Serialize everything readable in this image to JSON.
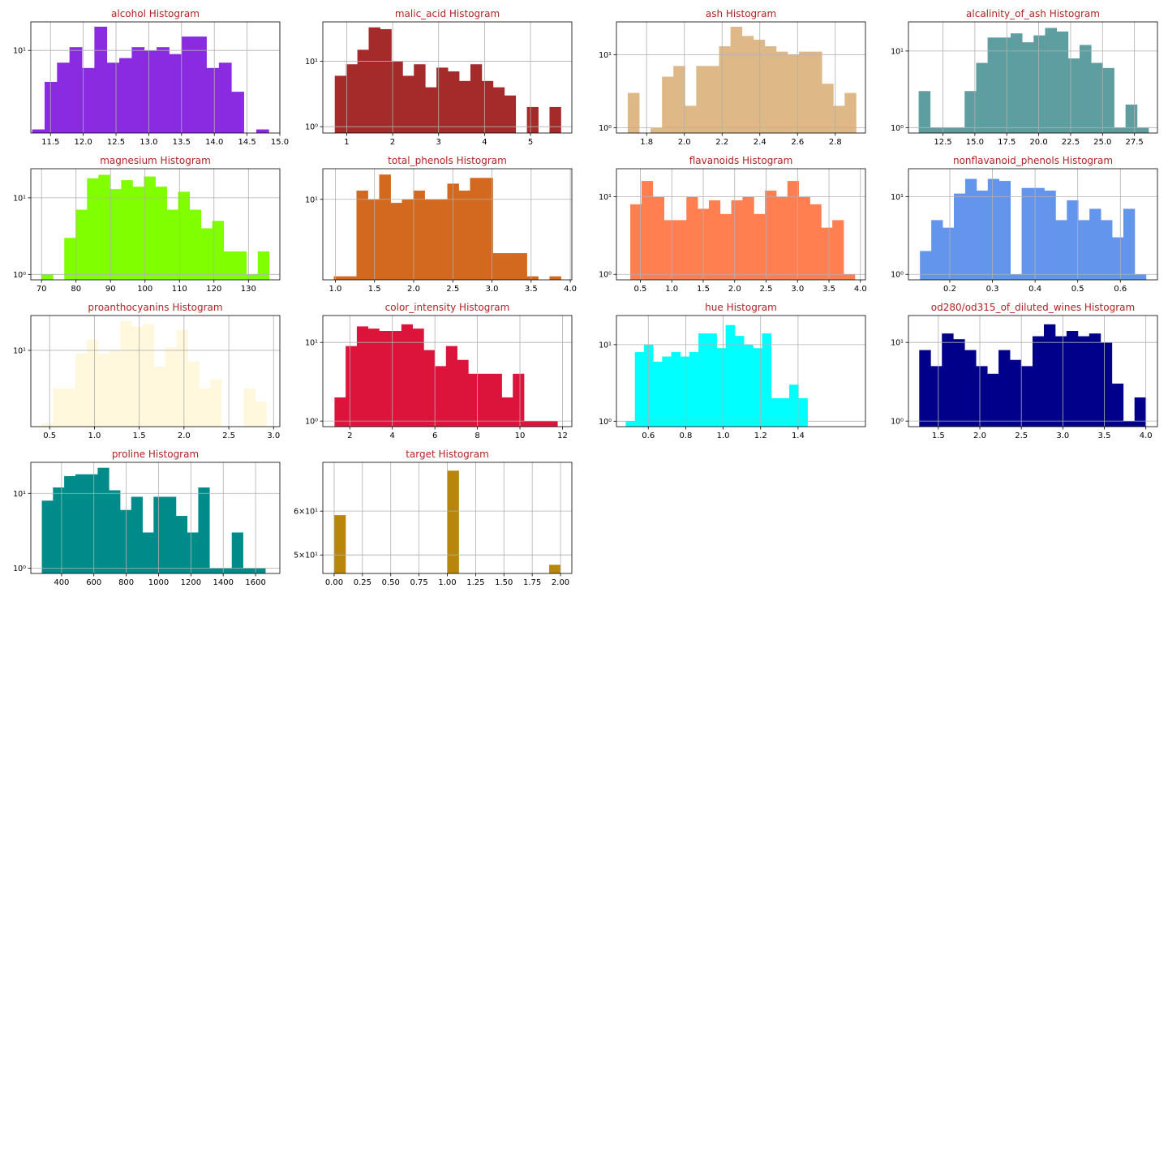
{
  "figure": {
    "title_color": "#b22222",
    "grid_color": "#b0b0b0",
    "axis_color": "#000000"
  },
  "chart_data": [
    {
      "type": "bar",
      "title": "alcohol Histogram",
      "color": "#8a2be2",
      "yscale": "log",
      "xlim": [
        11.2,
        15.0
      ],
      "x_ticks": [
        11.5,
        12.0,
        12.5,
        13.0,
        13.5,
        14.0,
        14.5,
        15.0
      ],
      "x_tick_labels": [
        "11.5",
        "12.0",
        "12.5",
        "13.0",
        "13.5",
        "14.0",
        "14.5",
        "15.0"
      ],
      "ylim": [
        0.9,
        23
      ],
      "y_ticks": [
        10
      ],
      "y_tick_labels": [
        "10¹"
      ],
      "bin_edges": [
        11.03,
        11.22,
        11.41,
        11.6,
        11.79,
        11.98,
        12.17,
        12.36,
        12.55,
        12.74,
        12.93,
        13.12,
        13.31,
        13.5,
        13.69,
        13.88,
        14.07,
        14.26,
        14.45,
        14.64,
        14.83
      ],
      "counts": [
        0,
        1,
        4,
        7,
        11,
        6,
        20,
        7,
        8,
        11,
        10,
        11,
        9,
        15,
        15,
        6,
        7,
        3,
        0,
        1
      ]
    },
    {
      "type": "bar",
      "title": "malic_acid Histogram",
      "color": "#a52a2a",
      "yscale": "log",
      "xlim": [
        0.48,
        5.9
      ],
      "x_ticks": [
        1,
        2,
        3,
        4,
        5
      ],
      "x_tick_labels": [
        "1",
        "2",
        "3",
        "4",
        "5"
      ],
      "ylim": [
        0.8,
        40
      ],
      "y_ticks": [
        1,
        10
      ],
      "y_tick_labels": [
        "10⁰",
        "10¹"
      ],
      "bin_edges": [
        0.74,
        0.986,
        1.232,
        1.478,
        1.724,
        1.97,
        2.216,
        2.462,
        2.708,
        2.954,
        3.2,
        3.446,
        3.692,
        3.938,
        4.184,
        4.43,
        4.676,
        4.922,
        5.168,
        5.414,
        5.66
      ],
      "counts": [
        6,
        9,
        15,
        33,
        31,
        10,
        6,
        9,
        4,
        8,
        7,
        5,
        9,
        5,
        4,
        3,
        0,
        2,
        0,
        2
      ]
    },
    {
      "type": "bar",
      "title": "ash Histogram",
      "color": "#deb887",
      "yscale": "log",
      "xlim": [
        1.64,
        2.96
      ],
      "x_ticks": [
        1.8,
        2.0,
        2.2,
        2.4,
        2.6,
        2.8
      ],
      "x_tick_labels": [
        "1.8",
        "2.0",
        "2.2",
        "2.4",
        "2.6",
        "2.8"
      ],
      "ylim": [
        0.85,
        28
      ],
      "y_ticks": [
        1,
        10
      ],
      "y_tick_labels": [
        "10⁰",
        "10¹"
      ],
      "bin_edges": [
        1.7,
        1.7605,
        1.821,
        1.8815,
        1.942,
        2.0025,
        2.063,
        2.1235,
        2.184,
        2.2445,
        2.305,
        2.3655,
        2.426,
        2.4865,
        2.547,
        2.6075,
        2.668,
        2.7285,
        2.789,
        2.8495,
        2.91
      ],
      "counts": [
        3,
        0,
        1,
        5,
        7,
        2,
        7,
        7,
        13,
        24,
        18,
        16,
        13,
        11,
        10,
        11,
        11,
        4,
        2,
        3
      ]
    },
    {
      "type": "bar",
      "title": "alcalinity_of_ash Histogram",
      "color": "#5f9ea0",
      "yscale": "log",
      "xlim": [
        9.8,
        29.3
      ],
      "x_ticks": [
        12.5,
        15.0,
        17.5,
        20.0,
        22.5,
        25.0,
        27.5
      ],
      "x_tick_labels": [
        "12.5",
        "15.0",
        "17.5",
        "20.0",
        "22.5",
        "25.0",
        "27.5"
      ],
      "ylim": [
        0.85,
        24
      ],
      "y_ticks": [
        1,
        10
      ],
      "y_tick_labels": [
        "10⁰",
        "10¹"
      ],
      "bin_edges": [
        10.6,
        11.5,
        12.4,
        13.3,
        14.2,
        15.1,
        16.0,
        16.9,
        17.8,
        18.7,
        19.6,
        20.5,
        21.4,
        22.3,
        23.2,
        24.1,
        25.0,
        25.9,
        26.8,
        27.7,
        28.6
      ],
      "counts": [
        3,
        1,
        1,
        1,
        3,
        7,
        15,
        15,
        17,
        13,
        16,
        20,
        18,
        8,
        12,
        7,
        6,
        1,
        2,
        1
      ]
    },
    {
      "type": "bar",
      "title": "magnesium Histogram",
      "color": "#7fff00",
      "yscale": "log",
      "xlim": [
        66.9,
        139.1
      ],
      "x_ticks": [
        70,
        80,
        90,
        100,
        110,
        120,
        130
      ],
      "x_tick_labels": [
        "70",
        "80",
        "90",
        "100",
        "110",
        "120",
        "130"
      ],
      "ylim": [
        0.85,
        24
      ],
      "y_ticks": [
        1,
        10
      ],
      "y_tick_labels": [
        "10⁰",
        "10¹"
      ],
      "bin_edges": [
        70,
        73.3,
        76.6,
        79.9,
        83.2,
        86.5,
        89.8,
        93.1,
        96.4,
        99.7,
        103,
        106.3,
        109.6,
        112.9,
        116.2,
        119.5,
        122.8,
        126.1,
        129.4,
        132.7,
        136
      ],
      "counts": [
        1,
        0,
        3,
        7,
        18,
        20,
        13,
        17,
        14,
        19,
        14,
        7,
        12,
        7,
        4,
        5,
        2,
        2,
        1,
        2
      ]
    },
    {
      "type": "bar",
      "title": "total_phenols Histogram",
      "color": "#d2691e",
      "yscale": "log",
      "xlim": [
        0.84,
        4.02
      ],
      "x_ticks": [
        1.0,
        1.5,
        2.0,
        2.5,
        3.0,
        3.5,
        4.0
      ],
      "x_tick_labels": [
        "1.0",
        "1.5",
        "2.0",
        "2.5",
        "3.0",
        "3.5",
        "4.0"
      ],
      "ylim": [
        0.9,
        25
      ],
      "y_ticks": [
        10
      ],
      "y_tick_labels": [
        "10¹"
      ],
      "bin_edges": [
        0.98,
        1.125,
        1.27,
        1.415,
        1.56,
        1.705,
        1.85,
        1.995,
        2.14,
        2.285,
        2.43,
        2.575,
        2.72,
        2.865,
        3.01,
        3.155,
        3.3,
        3.445,
        3.59,
        3.735,
        3.88
      ],
      "counts": [
        1,
        1,
        13,
        10,
        21,
        9,
        10,
        13,
        10,
        10,
        16,
        13,
        19,
        19,
        2,
        2,
        2,
        1,
        0,
        1
      ]
    },
    {
      "type": "bar",
      "title": "flavanoids Histogram",
      "color": "#ff7f50",
      "yscale": "log",
      "xlim": [
        0.12,
        4.08
      ],
      "x_ticks": [
        0.5,
        1.0,
        1.5,
        2.0,
        2.5,
        3.0,
        3.5,
        4.0
      ],
      "x_tick_labels": [
        "0.5",
        "1.0",
        "1.5",
        "2.0",
        "2.5",
        "3.0",
        "3.5",
        "4.0"
      ],
      "ylim": [
        0.85,
        23
      ],
      "y_ticks": [
        1,
        10
      ],
      "y_tick_labels": [
        "10⁰",
        "10¹"
      ],
      "bin_edges": [
        0.34,
        0.5185,
        0.697,
        0.8755,
        1.054,
        1.2325,
        1.411,
        1.5895,
        1.768,
        1.9465,
        2.125,
        2.3035,
        2.482,
        2.6605,
        2.839,
        3.0175,
        3.196,
        3.3745,
        3.553,
        3.7315,
        3.91
      ],
      "counts": [
        8,
        16,
        10,
        5,
        5,
        10,
        7,
        9,
        6,
        9,
        10,
        6,
        12,
        10,
        16,
        10,
        8,
        4,
        5,
        1
      ]
    },
    {
      "type": "bar",
      "title": "nonflavanoid_phenols Histogram",
      "color": "#6495ed",
      "yscale": "log",
      "xlim": [
        0.103,
        0.687
      ],
      "x_ticks": [
        0.2,
        0.3,
        0.4,
        0.5,
        0.6
      ],
      "x_tick_labels": [
        "0.2",
        "0.3",
        "0.4",
        "0.5",
        "0.6"
      ],
      "ylim": [
        0.85,
        23
      ],
      "y_ticks": [
        1,
        10
      ],
      "y_tick_labels": [
        "10⁰",
        "10¹"
      ],
      "bin_edges": [
        0.13,
        0.1565,
        0.183,
        0.2095,
        0.236,
        0.2625,
        0.289,
        0.3155,
        0.342,
        0.3685,
        0.395,
        0.4215,
        0.448,
        0.4745,
        0.501,
        0.5275,
        0.554,
        0.5805,
        0.607,
        0.6335,
        0.66
      ],
      "counts": [
        2,
        5,
        4,
        11,
        17,
        12,
        17,
        16,
        1,
        13,
        13,
        12,
        5,
        9,
        5,
        7,
        5,
        3,
        7,
        1
      ]
    },
    {
      "type": "bar",
      "title": "proanthocyanins Histogram",
      "color": "#fff8dc",
      "yscale": "log",
      "xlim": [
        0.29,
        3.07
      ],
      "x_ticks": [
        0.5,
        1.0,
        1.5,
        2.0,
        2.5,
        3.0
      ],
      "x_tick_labels": [
        "0.5",
        "1.0",
        "1.5",
        "2.0",
        "2.5",
        "3.0"
      ],
      "ylim": [
        0.9,
        30
      ],
      "y_ticks": [
        10
      ],
      "y_tick_labels": [
        "10¹"
      ],
      "bin_edges": [
        0.41,
        0.5355,
        0.661,
        0.7865,
        0.912,
        1.0375,
        1.163,
        1.2885,
        1.414,
        1.5395,
        1.665,
        1.7905,
        1.916,
        2.0415,
        2.167,
        2.2925,
        2.418,
        2.5435,
        2.669,
        2.7945,
        2.92
      ],
      "counts": [
        1,
        3,
        3,
        9,
        14,
        9,
        10,
        25,
        21,
        23,
        6,
        11,
        19,
        7,
        3,
        4,
        0,
        0,
        3,
        2
      ]
    },
    {
      "type": "bar",
      "title": "color_intensity Histogram",
      "color": "#dc143c",
      "yscale": "log",
      "xlim": [
        0.73,
        12.44
      ],
      "x_ticks": [
        2,
        4,
        6,
        8,
        10,
        12
      ],
      "x_tick_labels": [
        "2",
        "4",
        "6",
        "8",
        "10",
        "12"
      ],
      "ylim": [
        0.85,
        22
      ],
      "y_ticks": [
        1,
        10
      ],
      "y_tick_labels": [
        "10⁰",
        "10¹"
      ],
      "bin_edges": [
        1.28,
        1.804,
        2.328,
        2.852,
        3.376,
        3.9,
        4.424,
        4.948,
        5.472,
        5.996,
        6.52,
        7.044,
        7.568,
        8.092,
        8.616,
        9.14,
        9.664,
        10.188,
        10.712,
        11.236,
        11.76
      ],
      "counts": [
        2,
        9,
        16,
        15,
        14,
        14,
        17,
        15,
        8,
        5,
        9,
        6,
        4,
        4,
        4,
        2,
        4,
        1,
        1,
        1
      ]
    },
    {
      "type": "bar",
      "title": "hue Histogram",
      "color": "#00ffff",
      "yscale": "log",
      "xlim": [
        0.43,
        1.76
      ],
      "x_ticks": [
        0.6,
        0.8,
        1.0,
        1.2,
        1.4
      ],
      "x_tick_labels": [
        "0.6",
        "0.8",
        "1.0",
        "1.2",
        "1.4"
      ],
      "ylim": [
        0.85,
        24
      ],
      "y_ticks": [
        1,
        10
      ],
      "y_tick_labels": [
        "10⁰",
        "10¹"
      ],
      "bin_edges": [
        0.48,
        0.5285,
        0.577,
        0.6255,
        0.674,
        0.7225,
        0.771,
        0.8195,
        0.868,
        0.9165,
        0.965,
        1.0135,
        1.062,
        1.1105,
        1.159,
        1.2075,
        1.256,
        1.3045,
        1.353,
        1.4015,
        1.45
      ],
      "counts": [
        1,
        8,
        10,
        6,
        7,
        8,
        7,
        8,
        14,
        14,
        9,
        18,
        13,
        10,
        9,
        14,
        2,
        2,
        3,
        2
      ]
    },
    {
      "type": "bar",
      "title": "od280/od315_of_diluted_wines Histogram",
      "color": "#00008b",
      "yscale": "log",
      "xlim": [
        1.14,
        4.14
      ],
      "x_ticks": [
        1.5,
        2.0,
        2.5,
        3.0,
        3.5,
        4.0
      ],
      "x_tick_labels": [
        "1.5",
        "2.0",
        "2.5",
        "3.0",
        "3.5",
        "4.0"
      ],
      "ylim": [
        0.85,
        22
      ],
      "y_ticks": [
        1,
        10
      ],
      "y_tick_labels": [
        "10⁰",
        "10¹"
      ],
      "bin_edges": [
        1.27,
        1.4065,
        1.543,
        1.6795,
        1.816,
        1.9525,
        2.089,
        2.2255,
        2.362,
        2.4985,
        2.635,
        2.7715,
        2.908,
        3.0445,
        3.181,
        3.3175,
        3.454,
        3.5905,
        3.727,
        3.8635,
        4.0
      ],
      "counts": [
        8,
        5,
        13,
        11,
        8,
        5,
        4,
        8,
        6,
        5,
        12,
        17,
        12,
        14,
        12,
        13,
        10,
        3,
        1,
        2
      ]
    },
    {
      "type": "bar",
      "title": "proline Histogram",
      "color": "#008b8b",
      "yscale": "log",
      "xlim": [
        210,
        1750
      ],
      "x_ticks": [
        400,
        600,
        800,
        1000,
        1200,
        1400,
        1600
      ],
      "x_tick_labels": [
        "400",
        "600",
        "800",
        "1000",
        "1200",
        "1400",
        "1600"
      ],
      "ylim": [
        0.85,
        26
      ],
      "y_ticks": [
        1,
        10
      ],
      "y_tick_labels": [
        "10⁰",
        "10¹"
      ],
      "bin_edges": [
        278,
        347.1,
        416.2,
        485.3,
        554.4,
        623.5,
        692.6,
        761.7,
        830.8,
        899.9,
        969,
        1038.1,
        1107.2,
        1176.3,
        1245.4,
        1314.5,
        1383.6,
        1452.7,
        1521.8,
        1590.9,
        1660
      ],
      "counts": [
        8,
        12,
        17,
        18,
        18,
        22,
        11,
        6,
        9,
        3,
        9,
        9,
        5,
        3,
        12,
        1,
        1,
        3,
        1,
        1
      ]
    },
    {
      "type": "bar",
      "title": "target Histogram",
      "color": "#b8860b",
      "yscale": "log",
      "xlim": [
        -0.1,
        2.1
      ],
      "x_ticks": [
        0,
        0.25,
        0.5,
        0.75,
        1.0,
        1.25,
        1.5,
        1.75,
        2.0
      ],
      "x_tick_labels": [
        "0.00",
        "0.25",
        "0.50",
        "0.75",
        "1.00",
        "1.25",
        "1.50",
        "1.75",
        "2.00"
      ],
      "ylim": [
        46.3,
        73.5
      ],
      "y_ticks": [
        50,
        60
      ],
      "y_tick_labels": [
        "5×10¹",
        "6×10¹"
      ],
      "bin_edges": [
        0,
        0.1,
        0.2,
        0.3,
        0.4,
        0.5,
        0.6,
        0.7,
        0.8,
        0.9,
        1.0,
        1.1,
        1.2,
        1.3,
        1.4,
        1.5,
        1.6,
        1.7,
        1.8,
        1.9,
        2.0
      ],
      "counts": [
        59,
        0,
        0,
        0,
        0,
        0,
        0,
        0,
        0,
        0,
        71,
        0,
        0,
        0,
        0,
        0,
        0,
        0,
        0,
        48
      ]
    }
  ]
}
